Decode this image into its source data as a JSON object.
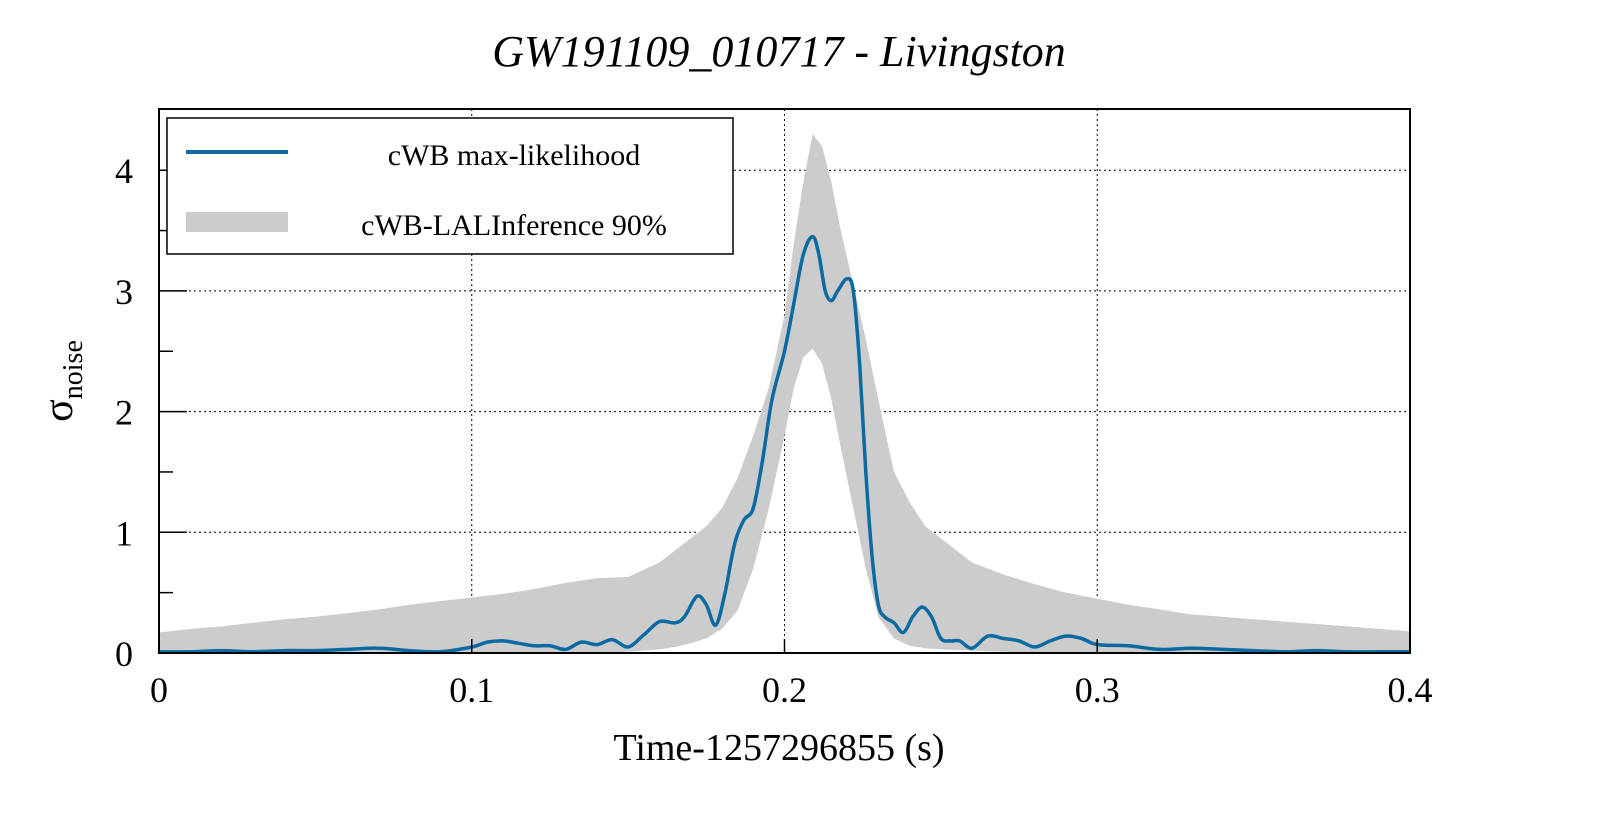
{
  "chart_data": {
    "type": "line",
    "title": "GW191109_010717 - Livingston",
    "xlabel": "Time-1257296855 (s)",
    "ylabel": "σ",
    "ylabel_subscript": "noise",
    "xlim": [
      0,
      0.4
    ],
    "ylim": [
      0,
      4.5
    ],
    "x_ticks": [
      0,
      0.1,
      0.2,
      0.3,
      0.4
    ],
    "x_tick_labels": [
      "0",
      "0.1",
      "0.2",
      "0.3",
      "0.4"
    ],
    "y_ticks": [
      0,
      1,
      2,
      3,
      4
    ],
    "y_tick_labels": [
      "0",
      "1",
      "2",
      "3",
      "4"
    ],
    "y_minor_ticks": [
      0.5,
      1.5,
      2.5,
      3.5
    ],
    "grid": true,
    "legend_position": "top-left",
    "legend": [
      {
        "label": "cWB max-likelihood",
        "kind": "line",
        "color": "#0a6aa1"
      },
      {
        "label": "cWB-LALInference 90%",
        "kind": "band",
        "color": "#cccccc"
      }
    ],
    "series": [
      {
        "name": "cWB max-likelihood",
        "type": "line",
        "color": "#0a6aa1",
        "x": [
          0,
          0.01,
          0.02,
          0.03,
          0.04,
          0.05,
          0.06,
          0.07,
          0.08,
          0.09,
          0.1,
          0.105,
          0.11,
          0.115,
          0.12,
          0.125,
          0.13,
          0.135,
          0.14,
          0.145,
          0.15,
          0.155,
          0.16,
          0.165,
          0.168,
          0.172,
          0.175,
          0.178,
          0.181,
          0.184,
          0.187,
          0.19,
          0.193,
          0.196,
          0.2,
          0.203,
          0.206,
          0.209,
          0.211,
          0.213,
          0.215,
          0.217,
          0.22,
          0.222,
          0.224,
          0.226,
          0.228,
          0.23,
          0.232,
          0.235,
          0.238,
          0.241,
          0.244,
          0.247,
          0.25,
          0.253,
          0.256,
          0.26,
          0.265,
          0.27,
          0.275,
          0.28,
          0.285,
          0.29,
          0.295,
          0.3,
          0.31,
          0.32,
          0.33,
          0.34,
          0.35,
          0.36,
          0.37,
          0.38,
          0.39,
          0.4
        ],
        "y": [
          0.01,
          0.01,
          0.02,
          0.01,
          0.02,
          0.02,
          0.03,
          0.04,
          0.02,
          0.01,
          0.05,
          0.09,
          0.1,
          0.08,
          0.06,
          0.06,
          0.03,
          0.09,
          0.07,
          0.11,
          0.05,
          0.15,
          0.26,
          0.25,
          0.3,
          0.47,
          0.4,
          0.23,
          0.5,
          0.9,
          1.1,
          1.2,
          1.6,
          2.1,
          2.5,
          2.9,
          3.3,
          3.45,
          3.3,
          3.0,
          2.92,
          3.0,
          3.1,
          3.0,
          2.4,
          1.5,
          0.8,
          0.4,
          0.3,
          0.25,
          0.17,
          0.3,
          0.38,
          0.3,
          0.12,
          0.1,
          0.1,
          0.04,
          0.14,
          0.12,
          0.1,
          0.05,
          0.1,
          0.14,
          0.12,
          0.07,
          0.06,
          0.03,
          0.04,
          0.03,
          0.02,
          0.01,
          0.02,
          0.01,
          0.01,
          0.01
        ]
      },
      {
        "name": "cWB-LALInference 90%",
        "type": "band",
        "color": "#cccccc",
        "x": [
          0,
          0.01,
          0.02,
          0.03,
          0.04,
          0.05,
          0.06,
          0.07,
          0.08,
          0.09,
          0.1,
          0.11,
          0.12,
          0.13,
          0.14,
          0.15,
          0.16,
          0.165,
          0.17,
          0.175,
          0.18,
          0.185,
          0.19,
          0.195,
          0.2,
          0.203,
          0.206,
          0.209,
          0.212,
          0.215,
          0.218,
          0.222,
          0.226,
          0.23,
          0.235,
          0.24,
          0.245,
          0.25,
          0.26,
          0.27,
          0.28,
          0.29,
          0.3,
          0.31,
          0.32,
          0.33,
          0.34,
          0.35,
          0.36,
          0.37,
          0.38,
          0.39,
          0.4
        ],
        "upper": [
          0.17,
          0.2,
          0.22,
          0.25,
          0.28,
          0.3,
          0.33,
          0.36,
          0.4,
          0.43,
          0.46,
          0.49,
          0.53,
          0.58,
          0.62,
          0.63,
          0.75,
          0.85,
          0.95,
          1.05,
          1.2,
          1.45,
          1.8,
          2.2,
          2.8,
          3.4,
          3.9,
          4.3,
          4.2,
          3.9,
          3.5,
          3.05,
          2.6,
          2.1,
          1.5,
          1.25,
          1.05,
          0.95,
          0.75,
          0.65,
          0.57,
          0.5,
          0.45,
          0.4,
          0.36,
          0.32,
          0.3,
          0.28,
          0.26,
          0.24,
          0.22,
          0.2,
          0.18
        ],
        "lower": [
          0.0,
          0.0,
          0.0,
          0.0,
          0.0,
          0.0,
          0.0,
          0.0,
          0.0,
          0.0,
          0.0,
          0.0,
          0.0,
          0.0,
          0.0,
          0.01,
          0.03,
          0.05,
          0.08,
          0.12,
          0.2,
          0.35,
          0.7,
          1.2,
          1.8,
          2.2,
          2.45,
          2.52,
          2.4,
          2.1,
          1.7,
          1.2,
          0.7,
          0.3,
          0.12,
          0.06,
          0.04,
          0.03,
          0.02,
          0.01,
          0.0,
          0.0,
          0.0,
          0.0,
          0.0,
          0.0,
          0.0,
          0.0,
          0.0,
          0.0,
          0.0,
          0.0,
          0.0
        ]
      }
    ]
  }
}
